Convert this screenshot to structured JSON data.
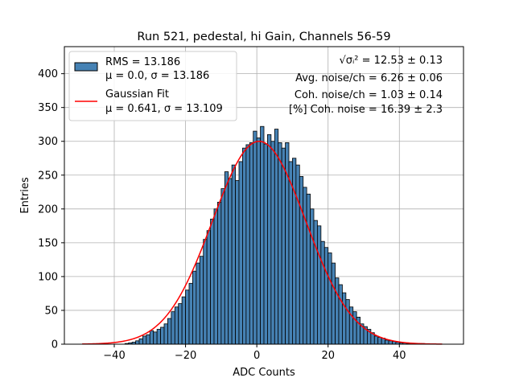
{
  "chart_data": {
    "type": "bar",
    "title": "Run 521, pedestal, hi Gain, Channels 56-59",
    "xlabel": "ADC Counts",
    "ylabel": "Entries",
    "xlim": [
      -54,
      58
    ],
    "ylim": [
      0,
      440
    ],
    "xticks": [
      -40,
      -20,
      0,
      20,
      40
    ],
    "yticks": [
      0,
      50,
      100,
      150,
      200,
      250,
      300,
      350,
      400
    ],
    "grid": true,
    "bar_color": "#4682b4",
    "fit_color": "#ff0000",
    "legend_position": "top-left",
    "legend": [
      {
        "line1": "RMS = 13.186",
        "line2": "μ = 0.0, σ = 13.186"
      },
      {
        "line1": "Gaussian Fit",
        "line2": "μ = 0.641, σ = 13.109"
      }
    ],
    "annotations": {
      "sigma_label": "√σᵢ²",
      "sigma_value": " = 12.53 ± 0.13",
      "avg_noise": "Avg. noise/ch = 6.26 ± 0.06",
      "coh_noise": "Coh. noise/ch = 1.03 ± 0.14",
      "pct_coh": "[%] Coh. noise = 16.39 ± 2.3"
    },
    "bin_start": -49,
    "bin_width": 1,
    "values": [
      0,
      0,
      0,
      0,
      0,
      0,
      0,
      0,
      0,
      0,
      0,
      0,
      1,
      2,
      3,
      5,
      8,
      12,
      14,
      20,
      18,
      22,
      25,
      30,
      38,
      48,
      55,
      60,
      70,
      80,
      90,
      108,
      120,
      130,
      155,
      168,
      185,
      200,
      210,
      230,
      255,
      245,
      265,
      242,
      270,
      290,
      295,
      298,
      315,
      305,
      322,
      296,
      310,
      300,
      318,
      298,
      290,
      298,
      270,
      275,
      265,
      248,
      232,
      222,
      200,
      183,
      175,
      152,
      143,
      135,
      120,
      98,
      88,
      76,
      66,
      55,
      48,
      40,
      30,
      26,
      22,
      17,
      12,
      10,
      9,
      6,
      5,
      4,
      3,
      2,
      2,
      1,
      1,
      1,
      0,
      1,
      0,
      0,
      0,
      0,
      0
    ],
    "fit": {
      "amplitude": 300,
      "mu": 0.641,
      "sigma": 13.109,
      "x_min": -49,
      "x_max": 52
    }
  }
}
